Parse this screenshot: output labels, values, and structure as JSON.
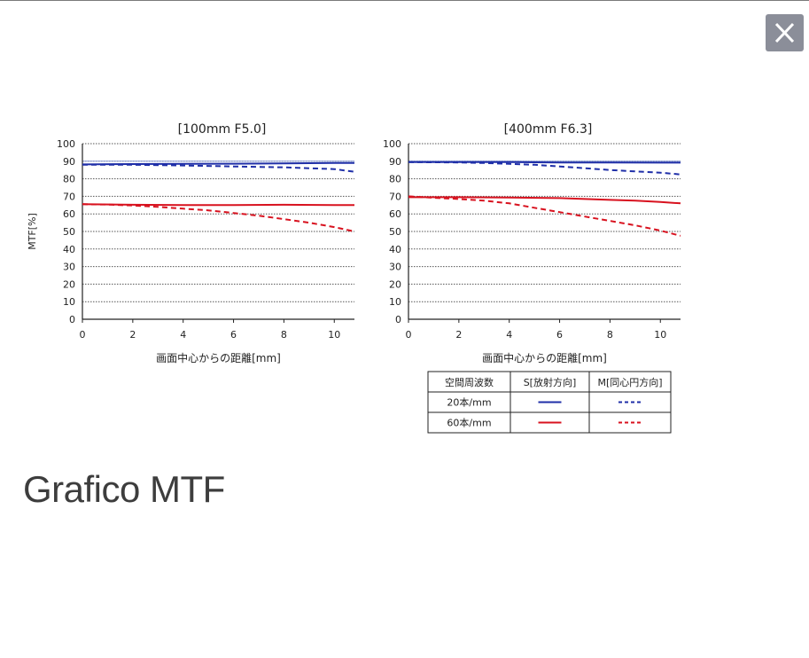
{
  "dialog": {
    "caption": "Grafico MTF",
    "close_icon": "close-icon"
  },
  "colors": {
    "blue": "#1f2fa8",
    "red": "#d8121f",
    "grid": "#555555",
    "ref": "#8ea0d8",
    "close_bg": "#8b8e99"
  },
  "chart_data": [
    {
      "type": "line",
      "title": "[100mm F5.0]",
      "xlabel": "画面中心からの距離[mm]",
      "ylabel": "MTF[%]",
      "xlim": [
        0,
        10.8
      ],
      "ylim": [
        0,
        100
      ],
      "xticks": [
        0,
        2,
        4,
        6,
        8,
        10
      ],
      "yticks": [
        0,
        10,
        20,
        30,
        40,
        50,
        60,
        70,
        80,
        90,
        100
      ],
      "grid": true,
      "series": [
        {
          "key": "s20",
          "style": "solid",
          "color": "#1f2fa8",
          "x": [
            0,
            2,
            4,
            6,
            8,
            10,
            10.8
          ],
          "y": [
            88.2,
            88.4,
            88.5,
            88.6,
            88.8,
            89.0,
            89.0
          ]
        },
        {
          "key": "m20",
          "style": "dashed",
          "color": "#1f2fa8",
          "x": [
            0,
            2,
            4,
            6,
            8,
            9,
            10,
            10.8
          ],
          "y": [
            88.0,
            88.0,
            87.6,
            87.0,
            86.5,
            86.0,
            85.5,
            84.0
          ]
        },
        {
          "key": "s60",
          "style": "solid",
          "color": "#d8121f",
          "x": [
            0,
            2,
            4,
            6,
            8,
            10,
            10.8
          ],
          "y": [
            65.5,
            65.2,
            65.0,
            65.0,
            65.2,
            65.0,
            65.0
          ]
        },
        {
          "key": "m60",
          "style": "dashed",
          "color": "#d8121f",
          "x": [
            0,
            1,
            2,
            3,
            4,
            5,
            6,
            7,
            8,
            9,
            10,
            10.8
          ],
          "y": [
            65.5,
            65.3,
            64.8,
            64.0,
            63.0,
            62.0,
            60.5,
            59.0,
            57.0,
            55.0,
            52.5,
            50.0
          ]
        }
      ]
    },
    {
      "type": "line",
      "title": "[400mm F6.3]",
      "xlabel": "画面中心からの距離[mm]",
      "ylabel": "",
      "xlim": [
        0,
        10.8
      ],
      "ylim": [
        0,
        100
      ],
      "xticks": [
        0,
        2,
        4,
        6,
        8,
        10
      ],
      "yticks": [
        0,
        10,
        20,
        30,
        40,
        50,
        60,
        70,
        80,
        90,
        100
      ],
      "grid": true,
      "series": [
        {
          "key": "s20",
          "style": "solid",
          "color": "#1f2fa8",
          "x": [
            0,
            2,
            4,
            6,
            8,
            10,
            10.8
          ],
          "y": [
            89.5,
            89.5,
            89.5,
            89.3,
            89.3,
            89.2,
            89.2
          ]
        },
        {
          "key": "m20",
          "style": "dashed",
          "color": "#1f2fa8",
          "x": [
            0,
            2,
            3,
            4,
            5,
            6,
            7,
            8,
            9,
            10,
            10.8
          ],
          "y": [
            89.5,
            89.3,
            89.0,
            88.5,
            88.0,
            87.0,
            86.0,
            85.0,
            84.2,
            83.5,
            82.5
          ]
        },
        {
          "key": "s60",
          "style": "solid",
          "color": "#d8121f",
          "x": [
            0,
            2,
            4,
            6,
            7,
            8,
            9,
            10,
            10.8
          ],
          "y": [
            69.5,
            69.5,
            69.3,
            69.0,
            68.5,
            68.0,
            67.5,
            66.8,
            66.0
          ]
        },
        {
          "key": "m60",
          "style": "dashed",
          "color": "#d8121f",
          "x": [
            0,
            1,
            2,
            3,
            4,
            5,
            6,
            7,
            8,
            9,
            10,
            10.8
          ],
          "y": [
            70.0,
            69.2,
            68.5,
            67.5,
            66.0,
            63.5,
            61.0,
            58.5,
            56.0,
            53.5,
            50.5,
            47.5
          ]
        }
      ]
    }
  ],
  "legend": {
    "headers": [
      "空間周波数",
      "S[放射方向]",
      "M[同心円方向]"
    ],
    "rows": [
      {
        "label": "20本/mm",
        "color": "#1f2fa8"
      },
      {
        "label": "60本/mm",
        "color": "#d8121f"
      }
    ]
  }
}
